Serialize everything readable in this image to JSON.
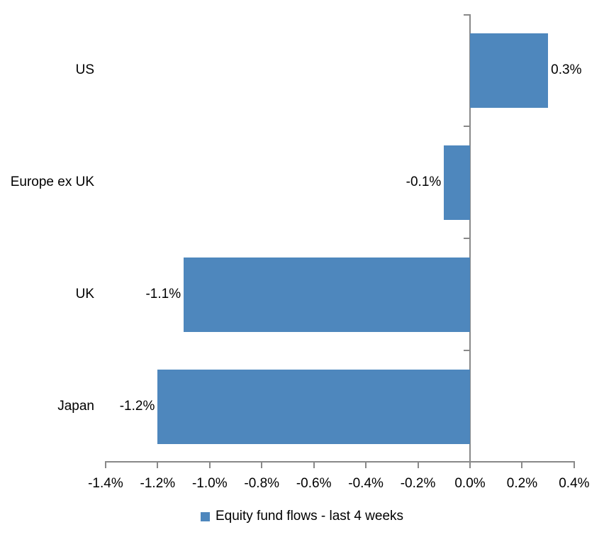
{
  "chart_data": {
    "type": "bar",
    "orientation": "horizontal",
    "title": "",
    "categories": [
      "US",
      "Europe ex UK",
      "UK",
      "Japan"
    ],
    "values": [
      0.3,
      -0.1,
      -1.1,
      -1.2
    ],
    "value_labels": [
      "0.3%",
      "-0.1%",
      "-1.1%",
      "-1.2%"
    ],
    "series_name": "Equity fund flows - last 4 weeks",
    "xlabel": "",
    "ylabel": "",
    "xlim": [
      -1.4,
      0.4
    ],
    "x_tick_values": [
      -1.4,
      -1.2,
      -1.0,
      -0.8,
      -0.6,
      -0.4,
      -0.2,
      0.0,
      0.2,
      0.4
    ],
    "x_ticks": [
      "-1.4%",
      "-1.2%",
      "-1.0%",
      "-0.8%",
      "-0.6%",
      "-0.4%",
      "-0.2%",
      "0.0%",
      "0.2%",
      "0.4%"
    ],
    "grid": false,
    "legend_position": "bottom",
    "bar_color": "#4E87BD",
    "axis_color": "#898989",
    "text_color": "#000000",
    "background_color": "#FFFFFF"
  },
  "legend": {
    "marker": "blue-square",
    "label": "Equity fund flows - last 4 weeks"
  }
}
